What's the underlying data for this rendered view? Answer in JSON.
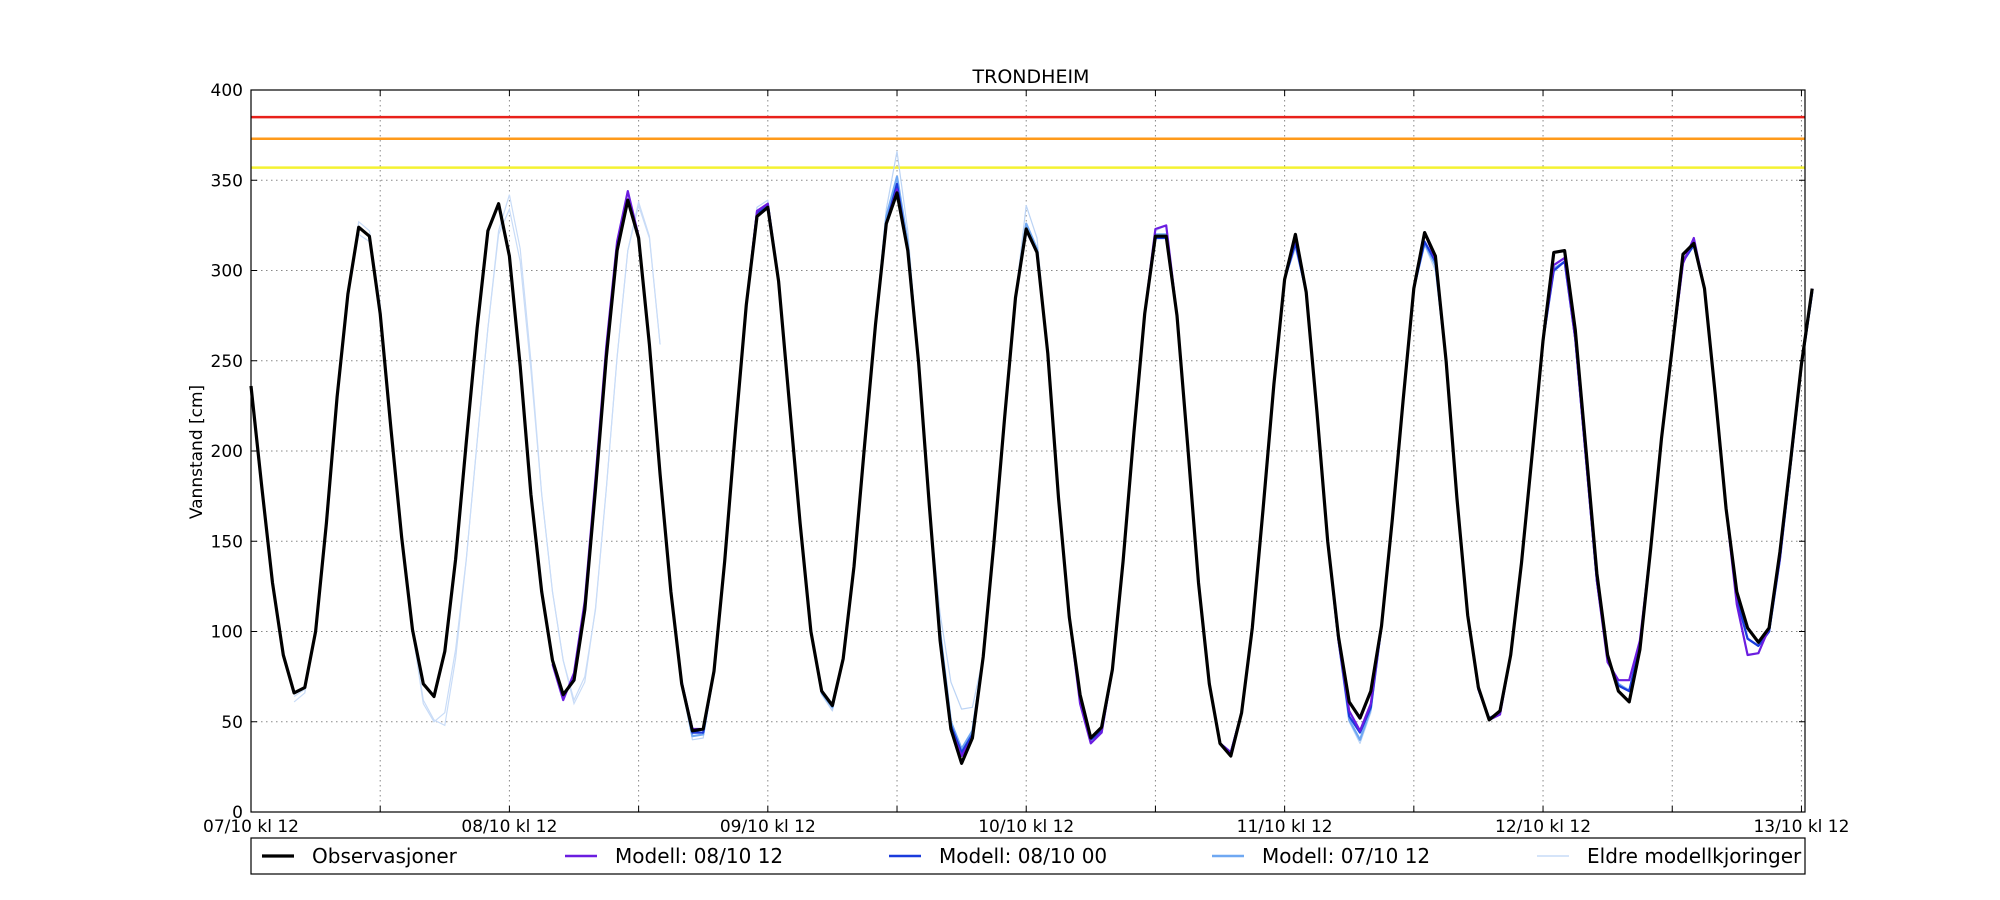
{
  "chart_data": {
    "type": "line",
    "title": "TRONDHEIM",
    "xlabel": "",
    "ylabel": "Vannstand [cm]",
    "ylim": [
      0,
      400
    ],
    "xlim": [
      "07/10 12:00",
      "13/10 12:20"
    ],
    "y_ticks": [
      0,
      50,
      100,
      150,
      200,
      250,
      300,
      350,
      400
    ],
    "x_tick_labels": [
      "07/10 kl 12",
      "08/10 kl 12",
      "09/10 kl 12",
      "10/10 kl 12",
      "11/10 kl 12",
      "12/10 kl 12",
      "13/10 kl 12"
    ],
    "grid": true,
    "legend_position": "below plot",
    "thresholds": [
      {
        "value": 385,
        "color": "#e8211b"
      },
      {
        "value": 373,
        "color": "#ff9a1a"
      },
      {
        "value": 357,
        "color": "#f4f232"
      }
    ],
    "time_start": "07/10 12:00",
    "time_step_hours": 1,
    "series": [
      {
        "name": "Observasjoner",
        "color": "#000000",
        "values": [
          236,
          180,
          127,
          87,
          66,
          69,
          100,
          160,
          230,
          287,
          324,
          319,
          276,
          212,
          152,
          101,
          71,
          64,
          89,
          140,
          205,
          268,
          322,
          337,
          308,
          247,
          176,
          122,
          84,
          65,
          73,
          112,
          179,
          252,
          311,
          339,
          318,
          259,
          187,
          122,
          71,
          45,
          46,
          78,
          139,
          212,
          281,
          330,
          335,
          294,
          227,
          160,
          100,
          67,
          59,
          85,
          136,
          204,
          270,
          326,
          343,
          311,
          249,
          170,
          95,
          46,
          27,
          41,
          86,
          149,
          219,
          285,
          323,
          310,
          254,
          174,
          108,
          65,
          41,
          47,
          79,
          139,
          210,
          276,
          319,
          319,
          275,
          203,
          127,
          71,
          38,
          31,
          55,
          102,
          168,
          237,
          295,
          320,
          288,
          222,
          150,
          97,
          61,
          52,
          67,
          103,
          162,
          228,
          290,
          321,
          308,
          250,
          174,
          109,
          69,
          51,
          56,
          87,
          138,
          199,
          261,
          310,
          311,
          267,
          200,
          132,
          87,
          67,
          61,
          90,
          146,
          207,
          257,
          309,
          315,
          290,
          231,
          168,
          122,
          102,
          94,
          102,
          144,
          195,
          248,
          290
        ]
      },
      {
        "name": "Modell: 08/10 12",
        "color": "#6b1de0",
        "values": [
          null,
          null,
          null,
          null,
          null,
          null,
          null,
          null,
          null,
          null,
          null,
          null,
          null,
          null,
          null,
          null,
          null,
          null,
          null,
          null,
          null,
          null,
          null,
          null,
          null,
          null,
          null,
          null,
          82,
          62,
          77,
          117,
          185,
          258,
          316,
          344,
          319,
          259,
          187,
          122,
          72,
          46,
          46,
          78,
          139,
          212,
          281,
          333,
          337,
          294,
          227,
          160,
          100,
          67,
          59,
          85,
          136,
          204,
          270,
          326,
          345,
          311,
          249,
          170,
          95,
          46,
          31,
          41,
          86,
          149,
          219,
          285,
          323,
          310,
          254,
          174,
          108,
          60,
          38,
          44,
          79,
          139,
          210,
          276,
          323,
          325,
          275,
          203,
          127,
          71,
          38,
          33,
          55,
          102,
          168,
          237,
          295,
          318,
          288,
          222,
          150,
          95,
          56,
          45,
          60,
          103,
          162,
          228,
          290,
          321,
          306,
          250,
          174,
          109,
          68,
          51,
          54,
          87,
          138,
          199,
          261,
          303,
          307,
          262,
          195,
          128,
          83,
          73,
          73,
          95,
          146,
          207,
          257,
          304,
          318,
          290,
          231,
          168,
          115,
          87,
          88,
          102,
          141,
          195,
          248,
          290
        ]
      },
      {
        "name": "Modell: 08/10 00",
        "color": "#1a3bdc",
        "values": [
          null,
          null,
          null,
          null,
          null,
          null,
          null,
          null,
          null,
          null,
          null,
          null,
          null,
          null,
          null,
          null,
          null,
          null,
          null,
          null,
          null,
          null,
          null,
          null,
          null,
          null,
          null,
          null,
          null,
          null,
          null,
          null,
          null,
          null,
          null,
          null,
          null,
          null,
          null,
          null,
          72,
          44,
          44,
          78,
          139,
          212,
          281,
          332,
          336,
          294,
          227,
          160,
          100,
          67,
          59,
          85,
          136,
          204,
          270,
          326,
          348,
          311,
          249,
          170,
          95,
          48,
          33,
          43,
          86,
          149,
          219,
          285,
          322,
          310,
          254,
          174,
          108,
          62,
          40,
          45,
          79,
          139,
          210,
          276,
          318,
          318,
          275,
          203,
          127,
          71,
          38,
          33,
          55,
          102,
          168,
          237,
          295,
          315,
          288,
          222,
          150,
          95,
          53,
          44,
          58,
          103,
          162,
          228,
          290,
          316,
          305,
          250,
          174,
          109,
          68,
          52,
          55,
          87,
          138,
          199,
          261,
          300,
          305,
          262,
          195,
          128,
          86,
          70,
          67,
          92,
          146,
          207,
          257,
          305,
          314,
          290,
          231,
          168,
          118,
          96,
          92,
          100,
          140,
          193,
          247,
          288
        ]
      },
      {
        "name": "Modell: 07/10 12",
        "color": "#6fa8f2",
        "values": [
          null,
          null,
          null,
          null,
          null,
          null,
          null,
          null,
          null,
          null,
          null,
          null,
          null,
          null,
          null,
          null,
          null,
          null,
          null,
          null,
          null,
          null,
          null,
          null,
          null,
          null,
          null,
          null,
          null,
          null,
          null,
          null,
          null,
          null,
          null,
          null,
          null,
          null,
          null,
          null,
          72,
          42,
          43,
          78,
          139,
          212,
          281,
          332,
          337,
          294,
          227,
          160,
          100,
          66,
          58,
          85,
          136,
          204,
          270,
          330,
          352,
          315,
          249,
          170,
          100,
          50,
          35,
          45,
          86,
          149,
          219,
          285,
          326,
          312,
          254,
          174,
          108,
          63,
          40,
          44,
          79,
          139,
          210,
          276,
          320,
          320,
          275,
          203,
          127,
          71,
          38,
          33,
          55,
          102,
          168,
          237,
          295,
          315,
          288,
          222,
          150,
          95,
          51,
          40,
          57,
          103,
          162,
          228,
          290,
          315,
          303,
          250,
          174,
          109,
          68,
          52,
          55,
          87,
          138,
          199,
          261,
          301,
          305,
          262,
          195,
          128,
          85,
          71,
          67,
          92,
          146,
          207,
          257,
          305,
          316,
          290,
          231,
          168,
          118,
          96,
          92,
          100,
          140,
          193,
          247,
          288
        ]
      },
      {
        "name": "Eldre modellkjoringer",
        "color": "#bcd4f5",
        "values": [
          null,
          null,
          null,
          null,
          null,
          null,
          null,
          null,
          null,
          null,
          null,
          null,
          null,
          null,
          null,
          null,
          null,
          null,
          null,
          null,
          null,
          null,
          null,
          null,
          null,
          null,
          null,
          null,
          null,
          null,
          null,
          null,
          null,
          null,
          null,
          null,
          null,
          null,
          null,
          null,
          70,
          40,
          41,
          78,
          139,
          212,
          281,
          335,
          339,
          298,
          227,
          160,
          100,
          65,
          56,
          85,
          136,
          204,
          270,
          334,
          366,
          322,
          249,
          170,
          110,
          72,
          57,
          58,
          86,
          149,
          219,
          285,
          336,
          318,
          254,
          174,
          108,
          64,
          41,
          44,
          79,
          139,
          210,
          276,
          322,
          325,
          275,
          203,
          127,
          71,
          38,
          32,
          55,
          102,
          168,
          237,
          295,
          312,
          288,
          222,
          150,
          95,
          50,
          38,
          55,
          103,
          162,
          228,
          290,
          314,
          300,
          250,
          174,
          109,
          67,
          52,
          55,
          87,
          138,
          199,
          261,
          299,
          305,
          262,
          195,
          128,
          84,
          71,
          68,
          92,
          146,
          207,
          257,
          305,
          316,
          290,
          231,
          168,
          118,
          96,
          92,
          100,
          140,
          193,
          247,
          288
        ]
      }
    ],
    "older_runs": [
      {
        "color": "#c9dcf7",
        "values": [
          null,
          null,
          null,
          null,
          61,
          66,
          101,
          165,
          232,
          287,
          327,
          322,
          281,
          212,
          152,
          100,
          62,
          51,
          48,
          85,
          140,
          205,
          268,
          322,
          342,
          312,
          250,
          176,
          122,
          84,
          60,
          72,
          113,
          179,
          252,
          311,
          336,
          318,
          259
        ]
      },
      {
        "color": "#c9dcf7",
        "values": [
          null,
          null,
          null,
          null,
          64,
          68,
          98,
          162,
          229,
          285,
          320,
          316,
          273,
          212,
          152,
          100,
          60,
          50,
          55,
          90,
          140,
          205,
          268,
          320,
          334,
          305,
          245,
          176,
          122,
          84,
          62,
          75,
          112,
          179,
          252,
          311,
          338,
          319,
          259
        ]
      }
    ]
  }
}
